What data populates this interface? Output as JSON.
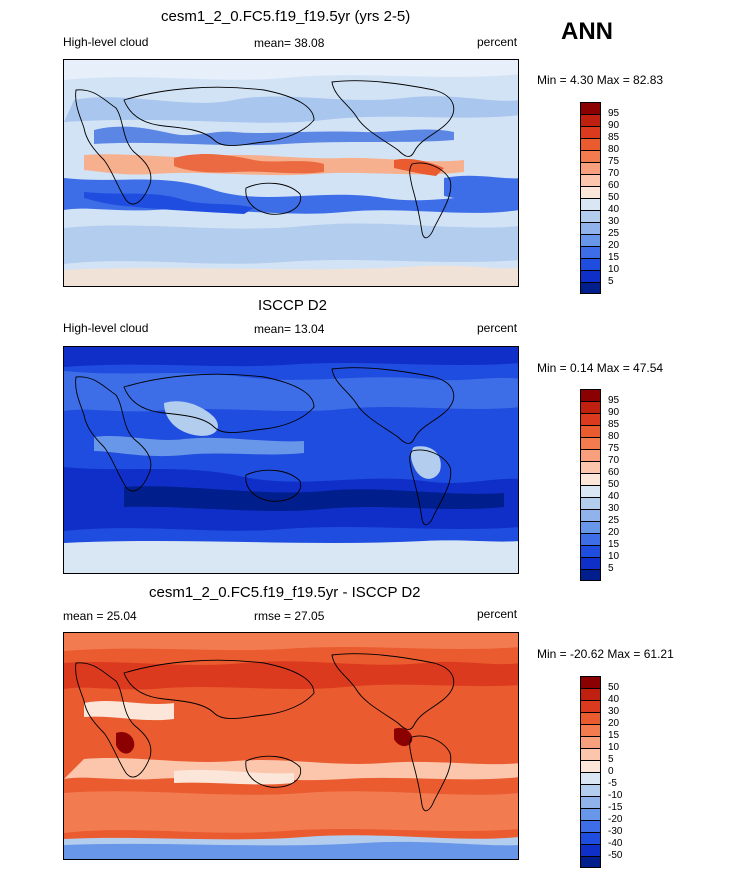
{
  "season": "ANN",
  "scale_a": {
    "labels": [
      "95",
      "90",
      "85",
      "80",
      "75",
      "70",
      "60",
      "50",
      "40",
      "30",
      "25",
      "20",
      "15",
      "10",
      "5"
    ],
    "colors": [
      "#8b0000",
      "#c0200f",
      "#dc3a1e",
      "#ea5b2f",
      "#f37b50",
      "#f8a07e",
      "#fbc6ab",
      "#fbe6d9",
      "#d9e7f5",
      "#b3cdee",
      "#8fb3ea",
      "#6896e8",
      "#3d6ee7",
      "#1f4de0",
      "#0f2fc8",
      "#001e8c"
    ]
  },
  "scale_diff": {
    "labels": [
      "50",
      "40",
      "30",
      "20",
      "15",
      "10",
      "5",
      "0",
      "-5",
      "-10",
      "-15",
      "-20",
      "-30",
      "-40",
      "-50"
    ],
    "colors": [
      "#8b0000",
      "#c0200f",
      "#dc3a1e",
      "#ea5b2f",
      "#f37b50",
      "#f8a07e",
      "#fbc6ab",
      "#fbe6d9",
      "#d9e7f5",
      "#b3cdee",
      "#8fb3ea",
      "#6896e8",
      "#3d6ee7",
      "#1f4de0",
      "#0f2fc8",
      "#001e8c"
    ]
  },
  "panels": [
    {
      "title": "cesm1_2_0.FC5.f19_f19.5yr (yrs 2-5)",
      "left_label": "High-level cloud",
      "center_label": "mean=  38.08",
      "right_label": "percent",
      "minmax": "Min =   4.30 Max =  82.83",
      "background": "#cfe0f5"
    },
    {
      "title": "ISCCP D2",
      "left_label": "High-level cloud",
      "center_label": "mean=  13.04",
      "right_label": "percent",
      "minmax": "Min =   0.14 Max =  47.54",
      "background": "#2a55d8"
    },
    {
      "title": "cesm1_2_0.FC5.f19_f19.5yr - ISCCP D2",
      "left_label": "mean =  25.04",
      "center_label": "rmse =  27.05",
      "right_label": "percent",
      "minmax": "Min = -20.62 Max =  61.21",
      "background": "#e44a26"
    }
  ],
  "chart_data": [
    {
      "type": "heatmap",
      "title": "cesm1_2_0.FC5.f19_f19.5yr (yrs 2-5)",
      "variable": "High-level cloud",
      "units": "percent",
      "mean": 38.08,
      "min": 4.3,
      "max": 82.83,
      "contour_levels": [
        5,
        10,
        15,
        20,
        25,
        30,
        40,
        50,
        60,
        70,
        75,
        80,
        85,
        90,
        95
      ]
    },
    {
      "type": "heatmap",
      "title": "ISCCP D2",
      "variable": "High-level cloud",
      "units": "percent",
      "mean": 13.04,
      "min": 0.14,
      "max": 47.54,
      "contour_levels": [
        5,
        10,
        15,
        20,
        25,
        30,
        40,
        50,
        60,
        70,
        75,
        80,
        85,
        90,
        95
      ]
    },
    {
      "type": "heatmap",
      "title": "cesm1_2_0.FC5.f19_f19.5yr - ISCCP D2",
      "units": "percent",
      "mean": 25.04,
      "rmse": 27.05,
      "min": -20.62,
      "max": 61.21,
      "contour_levels": [
        -50,
        -40,
        -30,
        -20,
        -15,
        -10,
        -5,
        0,
        5,
        10,
        15,
        20,
        30,
        40,
        50
      ]
    }
  ]
}
